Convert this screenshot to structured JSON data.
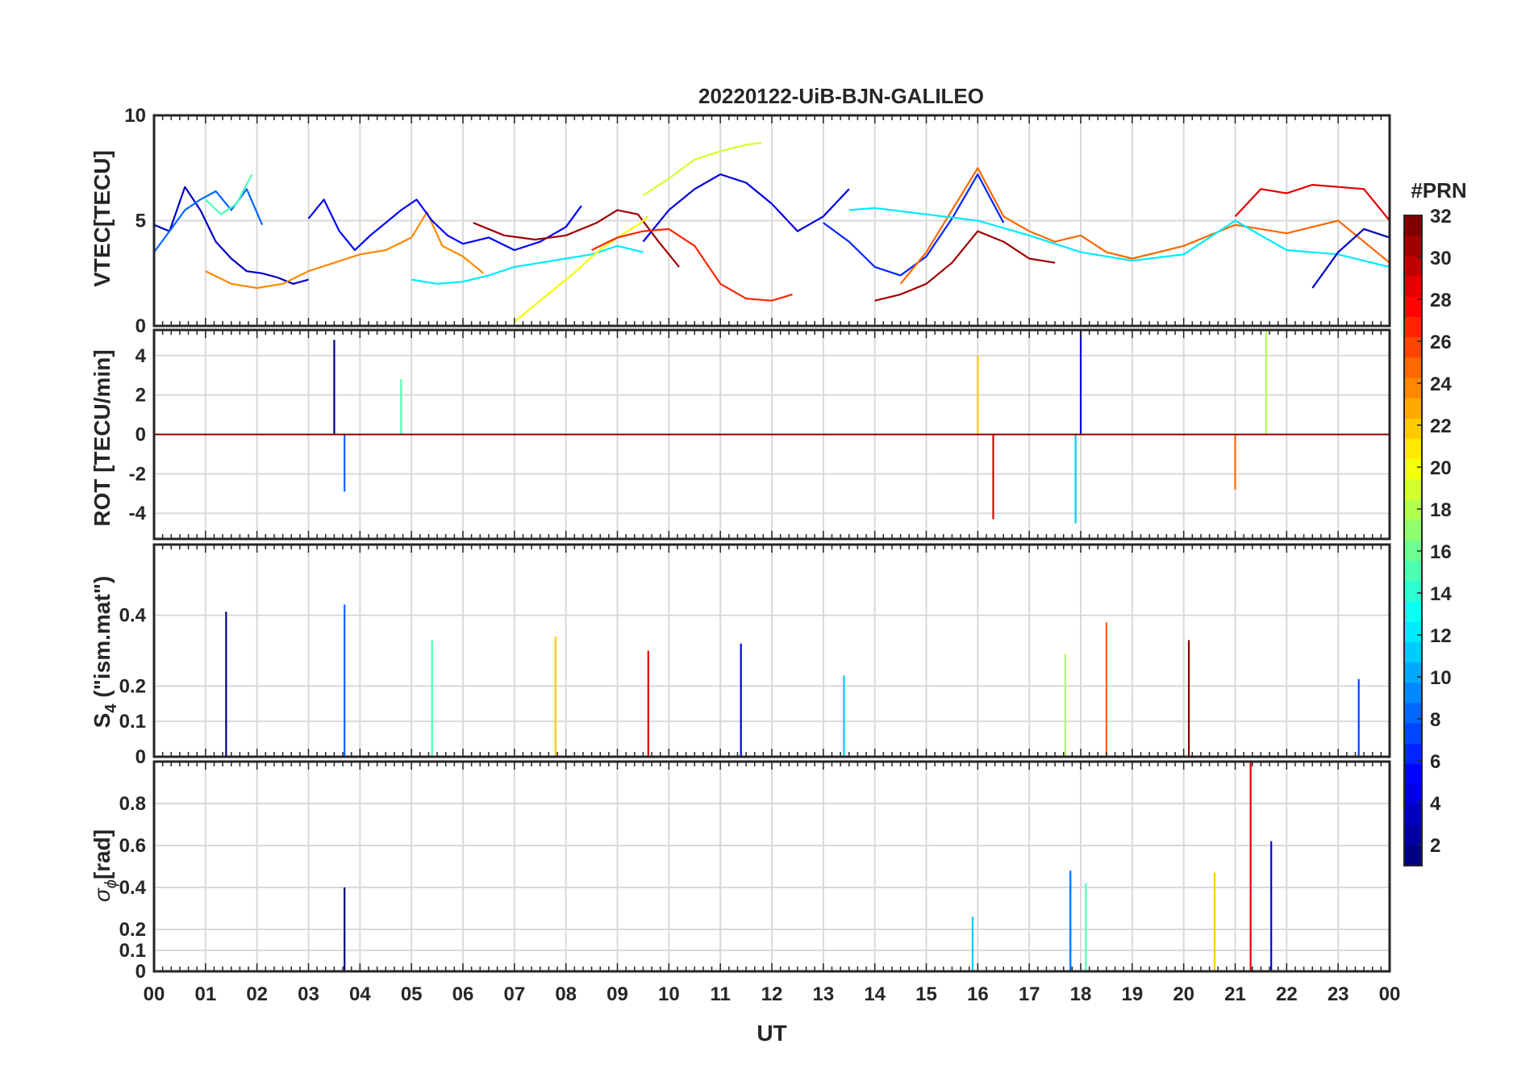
{
  "figure": {
    "title": "20220122-UiB-BJN-GALILEO",
    "xlabel": "UT",
    "x_tick_labels": [
      "00",
      "01",
      "02",
      "03",
      "04",
      "05",
      "06",
      "07",
      "08",
      "09",
      "10",
      "11",
      "12",
      "13",
      "14",
      "15",
      "16",
      "17",
      "18",
      "19",
      "20",
      "21",
      "22",
      "23",
      "00"
    ]
  },
  "colorbar": {
    "title": "#PRN",
    "colormap": "jet",
    "range": [
      1,
      32
    ],
    "tick_labels": [
      "2",
      "4",
      "6",
      "8",
      "10",
      "12",
      "14",
      "16",
      "18",
      "20",
      "22",
      "24",
      "26",
      "28",
      "30",
      "32"
    ]
  },
  "panels": [
    {
      "key": "vtec",
      "ylabel": "VTEC[TECU]",
      "y_tick_labels": [
        "0",
        "5",
        "10"
      ]
    },
    {
      "key": "rot",
      "ylabel": "ROT [TECU/min]",
      "y_tick_labels": [
        "-4",
        "-2",
        "0",
        "2",
        "4"
      ]
    },
    {
      "key": "s4",
      "ylabel_main": "S",
      "ylabel_sub": "4",
      "ylabel_rest": " (\"ism.mat\")",
      "y_tick_labels": [
        "0",
        "0.1",
        "0.2",
        "0.4"
      ]
    },
    {
      "key": "sigma",
      "ylabel_main": "σ",
      "ylabel_sub": "ϕ",
      "ylabel_rest": "[rad]",
      "y_tick_labels": [
        "0",
        "0.1",
        "0.2",
        "0.4",
        "0.6",
        "0.8"
      ]
    }
  ],
  "chart_data": [
    {
      "type": "line",
      "title": "20220122-UiB-BJN-GALILEO",
      "ylabel": "VTEC[TECU]",
      "xlabel": "UT",
      "xlim": [
        0,
        24
      ],
      "ylim": [
        0,
        10
      ],
      "y_ticks": [
        0,
        5,
        10
      ],
      "grid": true,
      "series": [
        {
          "prn": 3,
          "x": [
            0.0,
            0.3,
            0.6,
            0.9,
            1.2,
            1.5,
            1.8,
            2.1,
            2.4,
            2.7,
            3.0
          ],
          "y": [
            4.8,
            4.5,
            6.6,
            5.5,
            4.0,
            3.2,
            2.6,
            2.5,
            2.3,
            2.0,
            2.2
          ]
        },
        {
          "prn": 8,
          "x": [
            0.0,
            0.3,
            0.6,
            0.9,
            1.2,
            1.5,
            1.8,
            2.1
          ],
          "y": [
            3.5,
            4.5,
            5.5,
            6.0,
            6.4,
            5.5,
            6.5,
            4.8
          ]
        },
        {
          "prn": 15,
          "x": [
            1.0,
            1.3,
            1.6,
            1.9
          ],
          "y": [
            6.0,
            5.3,
            5.8,
            7.2
          ]
        },
        {
          "prn": 24,
          "x": [
            1.0,
            1.5,
            2.0,
            2.5,
            3.0,
            3.5,
            4.0,
            4.5,
            5.0,
            5.3,
            5.6,
            6.0,
            6.4
          ],
          "y": [
            2.6,
            2.0,
            1.8,
            2.0,
            2.6,
            3.0,
            3.4,
            3.6,
            4.2,
            5.4,
            3.8,
            3.3,
            2.5
          ]
        },
        {
          "prn": 5,
          "x": [
            3.0,
            3.3,
            3.6,
            3.9,
            4.2,
            4.5,
            4.8,
            5.1,
            5.4,
            5.7,
            6.0,
            6.5,
            7.0,
            7.5,
            8.0,
            8.3
          ],
          "y": [
            5.1,
            6.0,
            4.5,
            3.6,
            4.3,
            4.9,
            5.5,
            6.0,
            5.0,
            4.3,
            3.9,
            4.2,
            3.6,
            4.0,
            4.7,
            5.7
          ]
        },
        {
          "prn": 12,
          "x": [
            5.0,
            5.5,
            6.0,
            6.5,
            7.0,
            7.5,
            8.0,
            8.5,
            9.0,
            9.5
          ],
          "y": [
            2.2,
            2.0,
            2.1,
            2.4,
            2.8,
            3.0,
            3.2,
            3.4,
            3.8,
            3.5
          ]
        },
        {
          "prn": 31,
          "x": [
            6.2,
            6.8,
            7.4,
            8.0,
            8.6,
            9.0,
            9.4,
            9.8,
            10.2
          ],
          "y": [
            4.9,
            4.3,
            4.1,
            4.3,
            4.9,
            5.5,
            5.3,
            4.0,
            2.8
          ]
        },
        {
          "prn": 20,
          "x": [
            7.0,
            7.4,
            7.8,
            8.2,
            8.6,
            9.0,
            9.4,
            9.6
          ],
          "y": [
            0.2,
            1.0,
            1.8,
            2.6,
            3.5,
            4.2,
            4.8,
            5.2
          ]
        },
        {
          "prn": 19,
          "x": [
            9.5,
            10.0,
            10.5,
            11.0,
            11.5,
            11.8
          ],
          "y": [
            6.2,
            7.0,
            7.9,
            8.3,
            8.6,
            8.7
          ]
        },
        {
          "prn": 4,
          "x": [
            9.5,
            10.0,
            10.5,
            11.0,
            11.5,
            12.0,
            12.5,
            13.0,
            13.5
          ],
          "y": [
            4.0,
            5.5,
            6.5,
            7.2,
            6.8,
            5.8,
            4.5,
            5.2,
            6.5
          ]
        },
        {
          "prn": 27,
          "x": [
            8.5,
            9.0,
            9.5,
            10.0,
            10.5,
            11.0,
            11.5,
            12.0,
            12.4
          ],
          "y": [
            3.6,
            4.2,
            4.5,
            4.6,
            3.8,
            2.0,
            1.3,
            1.2,
            1.5
          ]
        },
        {
          "prn": 6,
          "x": [
            13.0,
            13.5,
            14.0,
            14.5,
            15.0,
            15.5,
            16.0,
            16.5
          ],
          "y": [
            4.9,
            4.0,
            2.8,
            2.4,
            3.3,
            5.1,
            7.2,
            4.9
          ]
        },
        {
          "prn": 25,
          "x": [
            14.5,
            15.0,
            15.5,
            16.0,
            16.5,
            17.0,
            17.5,
            18.0,
            18.5,
            19.0,
            20.0,
            21.0,
            22.0,
            23.0,
            24.0
          ],
          "y": [
            2.0,
            3.5,
            5.5,
            7.5,
            5.2,
            4.5,
            4.0,
            4.3,
            3.5,
            3.2,
            3.8,
            4.8,
            4.4,
            5.0,
            3.0
          ]
        },
        {
          "prn": 31,
          "x": [
            14.0,
            14.5,
            15.0,
            15.5,
            16.0,
            16.5,
            17.0,
            17.5
          ],
          "y": [
            1.2,
            1.5,
            2.0,
            3.0,
            4.5,
            4.0,
            3.2,
            3.0
          ]
        },
        {
          "prn": 12,
          "x": [
            13.5,
            14.0,
            15.0,
            16.0,
            17.0,
            18.0,
            19.0,
            20.0,
            21.0,
            22.0,
            23.0,
            24.0
          ],
          "y": [
            5.5,
            5.6,
            5.3,
            5.0,
            4.3,
            3.5,
            3.1,
            3.4,
            5.0,
            3.6,
            3.4,
            2.8
          ]
        },
        {
          "prn": 29,
          "x": [
            21.0,
            21.5,
            22.0,
            22.5,
            23.0,
            23.5,
            24.0
          ],
          "y": [
            5.2,
            6.5,
            6.3,
            6.7,
            6.6,
            6.5,
            5.0
          ]
        },
        {
          "prn": 3,
          "x": [
            22.5,
            23.0,
            23.5,
            24.0
          ],
          "y": [
            1.8,
            3.5,
            4.6,
            4.2
          ]
        }
      ]
    },
    {
      "type": "line",
      "ylabel": "ROT [TECU/min]",
      "xlabel": "UT",
      "xlim": [
        0,
        24
      ],
      "ylim": [
        -5.3,
        5.3
      ],
      "y_ticks": [
        -4,
        -2,
        0,
        2,
        4
      ],
      "grid": true,
      "note_trend": "activity concentrated 00-05.5 UT and 14.5-22.5 UT, quiet 06-14 UT",
      "peaks": [
        {
          "x": 3.5,
          "y": 4.8
        },
        {
          "x": 3.7,
          "y": -2.9
        },
        {
          "x": 4.8,
          "y": 2.8
        },
        {
          "x": 16.0,
          "y": 4.0
        },
        {
          "x": 16.3,
          "y": -4.3
        },
        {
          "x": 18.0,
          "y": 5.3
        },
        {
          "x": 17.9,
          "y": -4.5
        },
        {
          "x": 21.6,
          "y": 5.3
        },
        {
          "x": 21.0,
          "y": -2.8
        }
      ]
    },
    {
      "type": "line",
      "ylabel": "S4 (\"ism.mat\")",
      "xlabel": "UT",
      "xlim": [
        0,
        24
      ],
      "ylim": [
        0,
        0.6
      ],
      "y_ticks": [
        0,
        0.1,
        0.2,
        0.4
      ],
      "grid": true,
      "peaks": [
        {
          "x": 1.4,
          "y": 0.41
        },
        {
          "x": 3.7,
          "y": 0.43
        },
        {
          "x": 5.4,
          "y": 0.33
        },
        {
          "x": 7.8,
          "y": 0.34
        },
        {
          "x": 9.6,
          "y": 0.3
        },
        {
          "x": 11.4,
          "y": 0.32
        },
        {
          "x": 13.4,
          "y": 0.23
        },
        {
          "x": 17.7,
          "y": 0.29
        },
        {
          "x": 18.5,
          "y": 0.38
        },
        {
          "x": 20.1,
          "y": 0.33
        },
        {
          "x": 23.4,
          "y": 0.22
        }
      ]
    },
    {
      "type": "line",
      "ylabel": "σϕ[rad]",
      "xlabel": "UT",
      "xlim": [
        0,
        24
      ],
      "ylim": [
        0,
        1.0
      ],
      "y_ticks": [
        0,
        0.1,
        0.2,
        0.4,
        0.6,
        0.8
      ],
      "grid": true,
      "peaks": [
        {
          "x": 3.7,
          "y": 0.4
        },
        {
          "x": 17.8,
          "y": 0.48
        },
        {
          "x": 18.1,
          "y": 0.42
        },
        {
          "x": 20.6,
          "y": 0.47
        },
        {
          "x": 21.3,
          "y": 1.0
        },
        {
          "x": 21.7,
          "y": 0.62
        },
        {
          "x": 15.9,
          "y": 0.26
        }
      ]
    }
  ]
}
